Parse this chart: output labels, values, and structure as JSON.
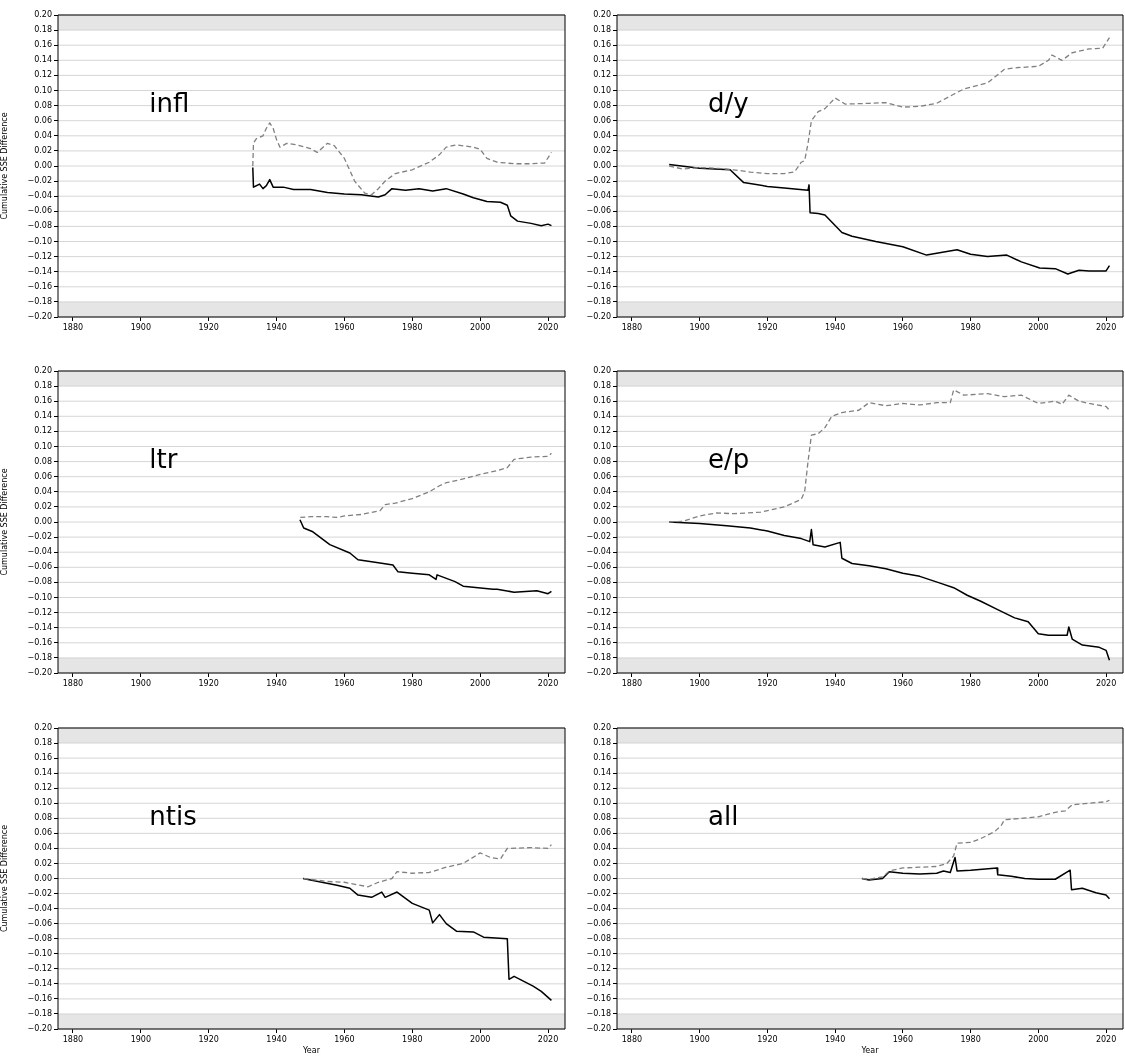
{
  "chart_data": [
    {
      "type": "line",
      "annotations": [
        "infl"
      ],
      "ylabel": "Cumulative SSE Difference",
      "grid": "y",
      "legend": false,
      "xlim": [
        1875.6,
        2025
      ],
      "ylim": [
        -0.2,
        0.2
      ],
      "xticks": [
        1880,
        1900,
        1920,
        1940,
        1960,
        1980,
        2000,
        2020
      ],
      "yticks": [
        {
          "value": -0.2,
          "label": "−0.20"
        },
        {
          "value": -0.18,
          "label": "−0.18"
        },
        {
          "value": -0.16,
          "label": "−0.16"
        },
        {
          "value": -0.14,
          "label": "−0.14"
        },
        {
          "value": -0.12,
          "label": "−0.12"
        },
        {
          "value": -0.1,
          "label": "−0.10"
        },
        {
          "value": -0.08,
          "label": "−0.08"
        },
        {
          "value": -0.06,
          "label": "−0.06"
        },
        {
          "value": -0.04,
          "label": "−0.04"
        },
        {
          "value": -0.02,
          "label": "−0.02"
        },
        {
          "value": 0,
          "label": "0.00"
        },
        {
          "value": 0.02,
          "label": "0.02"
        },
        {
          "value": 0.04,
          "label": "0.04"
        },
        {
          "value": 0.06,
          "label": "0.06"
        },
        {
          "value": 0.08,
          "label": "0.08"
        },
        {
          "value": 0.1,
          "label": "0.10"
        },
        {
          "value": 0.12,
          "label": "0.12"
        },
        {
          "value": 0.14,
          "label": "0.14"
        },
        {
          "value": 0.16,
          "label": "0.16"
        },
        {
          "value": 0.18,
          "label": "0.18"
        },
        {
          "value": 0.2,
          "label": "0.20"
        }
      ],
      "bands": [
        {
          "axis": "y",
          "from": 0.18,
          "to": 0.2,
          "color": "#e5e5e5"
        },
        {
          "axis": "y",
          "from": -0.2,
          "to": -0.18,
          "color": "#e5e5e5"
        }
      ],
      "series": [
        {
          "color": "#808080",
          "line_style": "dashed",
          "x": [
            1933,
            1933.2,
            1934,
            1936,
            1937,
            1938,
            1939,
            1940,
            1941,
            1943,
            1946,
            1950,
            1952,
            1955,
            1957,
            1960,
            1963,
            1966,
            1968,
            1970,
            1972,
            1975,
            1980,
            1985,
            1988,
            1990,
            1993,
            1998,
            2000,
            2002,
            2005,
            2010,
            2015,
            2019,
            2021
          ],
          "values": [
            0.0,
            0.03,
            0.036,
            0.04,
            0.05,
            0.057,
            0.05,
            0.035,
            0.025,
            0.03,
            0.028,
            0.023,
            0.018,
            0.03,
            0.027,
            0.01,
            -0.02,
            -0.036,
            -0.038,
            -0.03,
            -0.02,
            -0.01,
            -0.005,
            0.005,
            0.015,
            0.025,
            0.028,
            0.025,
            0.022,
            0.01,
            0.005,
            0.003,
            0.003,
            0.004,
            0.018
          ]
        },
        {
          "color": "#000000",
          "line_style": "solid",
          "x": [
            1933,
            1933.2,
            1935,
            1936,
            1937,
            1938,
            1939,
            1942,
            1945,
            1950,
            1955,
            1960,
            1965,
            1970,
            1972,
            1974,
            1978,
            1982,
            1986,
            1990,
            1995,
            1998,
            2002,
            2006,
            2008,
            2009,
            2011,
            2015,
            2018,
            2020,
            2021
          ],
          "values": [
            -0.002,
            -0.028,
            -0.024,
            -0.03,
            -0.026,
            -0.018,
            -0.028,
            -0.028,
            -0.031,
            -0.031,
            -0.035,
            -0.037,
            -0.038,
            -0.041,
            -0.038,
            -0.03,
            -0.032,
            -0.03,
            -0.033,
            -0.03,
            -0.037,
            -0.042,
            -0.047,
            -0.048,
            -0.052,
            -0.066,
            -0.073,
            -0.076,
            -0.079,
            -0.077,
            -0.079
          ]
        }
      ]
    },
    {
      "type": "line",
      "annotations": [
        "d/y"
      ],
      "grid": "y",
      "legend": false,
      "xlim": [
        1875.6,
        2025
      ],
      "ylim": [
        -0.2,
        0.2
      ],
      "xticks": [
        1880,
        1900,
        1920,
        1940,
        1960,
        1980,
        2000,
        2020
      ],
      "yticks": [
        {
          "value": -0.2,
          "label": "−0.20"
        },
        {
          "value": -0.18,
          "label": "−0.18"
        },
        {
          "value": -0.16,
          "label": "−0.16"
        },
        {
          "value": -0.14,
          "label": "−0.14"
        },
        {
          "value": -0.12,
          "label": "−0.12"
        },
        {
          "value": -0.1,
          "label": "−0.10"
        },
        {
          "value": -0.08,
          "label": "−0.08"
        },
        {
          "value": -0.06,
          "label": "−0.06"
        },
        {
          "value": -0.04,
          "label": "−0.04"
        },
        {
          "value": -0.02,
          "label": "−0.02"
        },
        {
          "value": 0,
          "label": "0.00"
        },
        {
          "value": 0.02,
          "label": "0.02"
        },
        {
          "value": 0.04,
          "label": "0.04"
        },
        {
          "value": 0.06,
          "label": "0.06"
        },
        {
          "value": 0.08,
          "label": "0.08"
        },
        {
          "value": 0.1,
          "label": "0.10"
        },
        {
          "value": 0.12,
          "label": "0.12"
        },
        {
          "value": 0.14,
          "label": "0.14"
        },
        {
          "value": 0.16,
          "label": "0.16"
        },
        {
          "value": 0.18,
          "label": "0.18"
        },
        {
          "value": 0.2,
          "label": "0.20"
        }
      ],
      "bands": [
        {
          "axis": "y",
          "from": 0.18,
          "to": 0.2,
          "color": "#e5e5e5"
        },
        {
          "axis": "y",
          "from": -0.2,
          "to": -0.18,
          "color": "#e5e5e5"
        }
      ],
      "series": [
        {
          "color": "#808080",
          "line_style": "dashed",
          "x": [
            1891,
            1895,
            1900,
            1905,
            1910,
            1915,
            1920,
            1925,
            1928,
            1930,
            1931,
            1932,
            1933,
            1935,
            1937,
            1940,
            1943,
            1950,
            1955,
            1960,
            1965,
            1970,
            1975,
            1978,
            1985,
            1990,
            1993,
            2000,
            2003,
            2004,
            2007,
            2010,
            2015,
            2019,
            2021
          ],
          "values": [
            0.0,
            -0.004,
            -0.002,
            -0.003,
            -0.005,
            -0.008,
            -0.01,
            -0.01,
            -0.008,
            0.005,
            0.007,
            0.03,
            0.06,
            0.072,
            0.076,
            0.09,
            0.082,
            0.083,
            0.084,
            0.078,
            0.079,
            0.083,
            0.095,
            0.102,
            0.11,
            0.128,
            0.13,
            0.132,
            0.14,
            0.147,
            0.14,
            0.15,
            0.155,
            0.156,
            0.17
          ]
        },
        {
          "color": "#000000",
          "line_style": "solid",
          "x": [
            1891,
            1900,
            1909,
            1913,
            1920,
            1925,
            1932,
            1932.3,
            1932.6,
            1935,
            1937,
            1942,
            1945,
            1952,
            1960,
            1967,
            1976,
            1980,
            1985,
            1990.7,
            1995,
            2000.4,
            2005,
            2008.7,
            2012,
            2015,
            2020,
            2021
          ],
          "values": [
            0.002,
            -0.003,
            -0.005,
            -0.022,
            -0.027,
            -0.029,
            -0.032,
            -0.025,
            -0.062,
            -0.063,
            -0.065,
            -0.088,
            -0.093,
            -0.1,
            -0.107,
            -0.118,
            -0.111,
            -0.117,
            -0.12,
            -0.118,
            -0.127,
            -0.135,
            -0.136,
            -0.143,
            -0.138,
            -0.139,
            -0.139,
            -0.132
          ]
        }
      ]
    },
    {
      "type": "line",
      "annotations": [
        "ltr"
      ],
      "ylabel": "Cumulative SSE Difference",
      "grid": "y",
      "legend": false,
      "xlim": [
        1875.6,
        2025
      ],
      "ylim": [
        -0.2,
        0.2
      ],
      "xticks": [
        1880,
        1900,
        1920,
        1940,
        1960,
        1980,
        2000,
        2020
      ],
      "yticks": [
        {
          "value": -0.2,
          "label": "−0.20"
        },
        {
          "value": -0.18,
          "label": "−0.18"
        },
        {
          "value": -0.16,
          "label": "−0.16"
        },
        {
          "value": -0.14,
          "label": "−0.14"
        },
        {
          "value": -0.12,
          "label": "−0.12"
        },
        {
          "value": -0.1,
          "label": "−0.10"
        },
        {
          "value": -0.08,
          "label": "−0.08"
        },
        {
          "value": -0.06,
          "label": "−0.06"
        },
        {
          "value": -0.04,
          "label": "−0.04"
        },
        {
          "value": -0.02,
          "label": "−0.02"
        },
        {
          "value": 0,
          "label": "0.00"
        },
        {
          "value": 0.02,
          "label": "0.02"
        },
        {
          "value": 0.04,
          "label": "0.04"
        },
        {
          "value": 0.06,
          "label": "0.06"
        },
        {
          "value": 0.08,
          "label": "0.08"
        },
        {
          "value": 0.1,
          "label": "0.10"
        },
        {
          "value": 0.12,
          "label": "0.12"
        },
        {
          "value": 0.14,
          "label": "0.14"
        },
        {
          "value": 0.16,
          "label": "0.16"
        },
        {
          "value": 0.18,
          "label": "0.18"
        },
        {
          "value": 0.2,
          "label": "0.20"
        }
      ],
      "bands": [
        {
          "axis": "y",
          "from": 0.18,
          "to": 0.2,
          "color": "#e5e5e5"
        },
        {
          "axis": "y",
          "from": -0.2,
          "to": -0.18,
          "color": "#e5e5e5"
        }
      ],
      "series": [
        {
          "color": "#808080",
          "line_style": "dashed",
          "x": [
            1947,
            1950,
            1955,
            1958,
            1960,
            1965,
            1970.5,
            1972,
            1975,
            1980,
            1985,
            1988,
            1990,
            1995,
            2000,
            2005,
            2008,
            2010,
            2015,
            2020,
            2021
          ],
          "values": [
            0.006,
            0.007,
            0.007,
            0.006,
            0.008,
            0.01,
            0.015,
            0.023,
            0.025,
            0.031,
            0.04,
            0.048,
            0.052,
            0.057,
            0.063,
            0.068,
            0.072,
            0.083,
            0.086,
            0.087,
            0.091
          ]
        },
        {
          "color": "#000000",
          "line_style": "solid",
          "x": [
            1946.9,
            1948,
            1950.7,
            1955.7,
            1961.6,
            1964,
            1970,
            1974.3,
            1975.8,
            1980,
            1985,
            1987,
            1987.3,
            1992.6,
            1995,
            2003.8,
            2005,
            2010,
            2016.7,
            2020,
            2021
          ],
          "values": [
            0.003,
            -0.008,
            -0.013,
            -0.03,
            -0.041,
            -0.05,
            -0.054,
            -0.057,
            -0.066,
            -0.068,
            -0.07,
            -0.076,
            -0.07,
            -0.079,
            -0.085,
            -0.089,
            -0.089,
            -0.093,
            -0.091,
            -0.095,
            -0.092
          ]
        }
      ]
    },
    {
      "type": "line",
      "annotations": [
        "e/p"
      ],
      "grid": "y",
      "legend": false,
      "xlim": [
        1875.6,
        2025
      ],
      "ylim": [
        -0.2,
        0.2
      ],
      "xticks": [
        1880,
        1900,
        1920,
        1940,
        1960,
        1980,
        2000,
        2020
      ],
      "yticks": [
        {
          "value": -0.2,
          "label": "−0.20"
        },
        {
          "value": -0.18,
          "label": "−0.18"
        },
        {
          "value": -0.16,
          "label": "−0.16"
        },
        {
          "value": -0.14,
          "label": "−0.14"
        },
        {
          "value": -0.12,
          "label": "−0.12"
        },
        {
          "value": -0.1,
          "label": "−0.10"
        },
        {
          "value": -0.08,
          "label": "−0.08"
        },
        {
          "value": -0.06,
          "label": "−0.06"
        },
        {
          "value": -0.04,
          "label": "−0.04"
        },
        {
          "value": -0.02,
          "label": "−0.02"
        },
        {
          "value": 0,
          "label": "0.00"
        },
        {
          "value": 0.02,
          "label": "0.02"
        },
        {
          "value": 0.04,
          "label": "0.04"
        },
        {
          "value": 0.06,
          "label": "0.06"
        },
        {
          "value": 0.08,
          "label": "0.08"
        },
        {
          "value": 0.1,
          "label": "0.10"
        },
        {
          "value": 0.12,
          "label": "0.12"
        },
        {
          "value": 0.14,
          "label": "0.14"
        },
        {
          "value": 0.16,
          "label": "0.16"
        },
        {
          "value": 0.18,
          "label": "0.18"
        },
        {
          "value": 0.2,
          "label": "0.20"
        }
      ],
      "bands": [
        {
          "axis": "y",
          "from": 0.18,
          "to": 0.2,
          "color": "#e5e5e5"
        },
        {
          "axis": "y",
          "from": -0.2,
          "to": -0.18,
          "color": "#e5e5e5"
        }
      ],
      "series": [
        {
          "color": "#808080",
          "line_style": "dashed",
          "x": [
            1891,
            1895,
            1900,
            1905,
            1910,
            1918,
            1925,
            1930,
            1931,
            1932,
            1933,
            1935,
            1937,
            1939,
            1942,
            1947,
            1950,
            1955,
            1960,
            1965,
            1970,
            1974,
            1975,
            1978,
            1985,
            1990,
            1995,
            2000,
            2005,
            2007,
            2009,
            2012,
            2015,
            2020,
            2021
          ],
          "values": [
            0,
            0.001,
            0.008,
            0.012,
            0.011,
            0.013,
            0.02,
            0.03,
            0.04,
            0.08,
            0.115,
            0.117,
            0.125,
            0.14,
            0.145,
            0.148,
            0.158,
            0.154,
            0.157,
            0.155,
            0.158,
            0.158,
            0.175,
            0.168,
            0.17,
            0.166,
            0.168,
            0.157,
            0.16,
            0.156,
            0.168,
            0.16,
            0.157,
            0.153,
            0.148
          ]
        },
        {
          "color": "#000000",
          "line_style": "solid",
          "x": [
            1891,
            1900,
            1908,
            1915,
            1920,
            1925,
            1930,
            1932.5,
            1933,
            1933.5,
            1937,
            1941.5,
            1942,
            1945,
            1950,
            1955,
            1960,
            1965,
            1971,
            1975,
            1979,
            1983,
            1988,
            1993,
            1997,
            2000,
            2003,
            2008.5,
            2009,
            2010,
            2013,
            2018,
            2020,
            2021
          ],
          "values": [
            0,
            -0.002,
            -0.005,
            -0.008,
            -0.012,
            -0.018,
            -0.022,
            -0.026,
            -0.01,
            -0.03,
            -0.033,
            -0.027,
            -0.048,
            -0.055,
            -0.058,
            -0.062,
            -0.068,
            -0.072,
            -0.081,
            -0.087,
            -0.097,
            -0.105,
            -0.116,
            -0.127,
            -0.132,
            -0.148,
            -0.15,
            -0.15,
            -0.139,
            -0.155,
            -0.163,
            -0.166,
            -0.17,
            -0.183
          ]
        }
      ]
    },
    {
      "type": "line",
      "annotations": [
        "ntis"
      ],
      "ylabel": "Cumulative SSE Difference",
      "xlabel": "Year",
      "grid": "y",
      "legend": false,
      "xlim": [
        1875.6,
        2025
      ],
      "ylim": [
        -0.2,
        0.2
      ],
      "xticks": [
        1880,
        1900,
        1920,
        1940,
        1960,
        1980,
        2000,
        2020
      ],
      "yticks": [
        {
          "value": -0.2,
          "label": "−0.20"
        },
        {
          "value": -0.18,
          "label": "−0.18"
        },
        {
          "value": -0.16,
          "label": "−0.16"
        },
        {
          "value": -0.14,
          "label": "−0.14"
        },
        {
          "value": -0.12,
          "label": "−0.12"
        },
        {
          "value": -0.1,
          "label": "−0.10"
        },
        {
          "value": -0.08,
          "label": "−0.08"
        },
        {
          "value": -0.06,
          "label": "−0.06"
        },
        {
          "value": -0.04,
          "label": "−0.04"
        },
        {
          "value": -0.02,
          "label": "−0.02"
        },
        {
          "value": 0,
          "label": "0.00"
        },
        {
          "value": 0.02,
          "label": "0.02"
        },
        {
          "value": 0.04,
          "label": "0.04"
        },
        {
          "value": 0.06,
          "label": "0.06"
        },
        {
          "value": 0.08,
          "label": "0.08"
        },
        {
          "value": 0.1,
          "label": "0.10"
        },
        {
          "value": 0.12,
          "label": "0.12"
        },
        {
          "value": 0.14,
          "label": "0.14"
        },
        {
          "value": 0.16,
          "label": "0.16"
        },
        {
          "value": 0.18,
          "label": "0.18"
        },
        {
          "value": 0.2,
          "label": "0.20"
        }
      ],
      "bands": [
        {
          "axis": "y",
          "from": 0.18,
          "to": 0.2,
          "color": "#e5e5e5"
        },
        {
          "axis": "y",
          "from": -0.2,
          "to": -0.18,
          "color": "#e5e5e5"
        }
      ],
      "series": [
        {
          "color": "#808080",
          "line_style": "dashed",
          "x": [
            1948,
            1955,
            1960,
            1967,
            1970,
            1974,
            1975.5,
            1980,
            1985,
            1990,
            1995,
            2000,
            2003,
            2006,
            2008,
            2015,
            2020,
            2021
          ],
          "values": [
            0,
            -0.004,
            -0.005,
            -0.011,
            -0.005,
            0,
            0.009,
            0.007,
            0.008,
            0.015,
            0.02,
            0.034,
            0.028,
            0.026,
            0.04,
            0.041,
            0.04,
            0.045
          ]
        },
        {
          "color": "#000000",
          "line_style": "solid",
          "x": [
            1947.8,
            1950,
            1957.8,
            1961.6,
            1964,
            1968,
            1971,
            1972,
            1975.5,
            1980,
            1985,
            1986,
            1988,
            1990,
            1993,
            1998,
            2001,
            2008,
            2008.5,
            2010,
            2015.6,
            2018,
            2021
          ],
          "values": [
            0,
            -0.002,
            -0.009,
            -0.013,
            -0.022,
            -0.025,
            -0.018,
            -0.025,
            -0.018,
            -0.033,
            -0.042,
            -0.059,
            -0.048,
            -0.06,
            -0.07,
            -0.071,
            -0.078,
            -0.08,
            -0.134,
            -0.13,
            -0.143,
            -0.15,
            -0.162
          ]
        }
      ]
    },
    {
      "type": "line",
      "annotations": [
        "all"
      ],
      "xlabel": "Year",
      "grid": "y",
      "legend": false,
      "xlim": [
        1875.6,
        2025
      ],
      "ylim": [
        -0.2,
        0.2
      ],
      "xticks": [
        1880,
        1900,
        1920,
        1940,
        1960,
        1980,
        2000,
        2020
      ],
      "yticks": [
        {
          "value": -0.2,
          "label": "−0.20"
        },
        {
          "value": -0.18,
          "label": "−0.18"
        },
        {
          "value": -0.16,
          "label": "−0.16"
        },
        {
          "value": -0.14,
          "label": "−0.14"
        },
        {
          "value": -0.12,
          "label": "−0.12"
        },
        {
          "value": -0.1,
          "label": "−0.10"
        },
        {
          "value": -0.08,
          "label": "−0.08"
        },
        {
          "value": -0.06,
          "label": "−0.06"
        },
        {
          "value": -0.04,
          "label": "−0.04"
        },
        {
          "value": -0.02,
          "label": "−0.02"
        },
        {
          "value": 0,
          "label": "0.00"
        },
        {
          "value": 0.02,
          "label": "0.02"
        },
        {
          "value": 0.04,
          "label": "0.04"
        },
        {
          "value": 0.06,
          "label": "0.06"
        },
        {
          "value": 0.08,
          "label": "0.08"
        },
        {
          "value": 0.1,
          "label": "0.10"
        },
        {
          "value": 0.12,
          "label": "0.12"
        },
        {
          "value": 0.14,
          "label": "0.14"
        },
        {
          "value": 0.16,
          "label": "0.16"
        },
        {
          "value": 0.18,
          "label": "0.18"
        },
        {
          "value": 0.2,
          "label": "0.20"
        }
      ],
      "bands": [
        {
          "axis": "y",
          "from": 0.18,
          "to": 0.2,
          "color": "#e5e5e5"
        },
        {
          "axis": "y",
          "from": -0.2,
          "to": -0.18,
          "color": "#e5e5e5"
        }
      ],
      "series": [
        {
          "color": "#808080",
          "line_style": "dashed",
          "x": [
            1948,
            1950,
            1954,
            1956,
            1960,
            1965,
            1970,
            1973,
            1975,
            1976,
            1980,
            1983,
            1987,
            1989,
            1990,
            1995,
            2000,
            2005,
            2008,
            2010,
            2015,
            2020,
            2021
          ],
          "values": [
            0,
            -0.001,
            0.002,
            0.01,
            0.014,
            0.015,
            0.016,
            0.02,
            0.03,
            0.047,
            0.048,
            0.053,
            0.062,
            0.07,
            0.078,
            0.08,
            0.082,
            0.088,
            0.09,
            0.098,
            0.1,
            0.102,
            0.104
          ]
        },
        {
          "color": "#000000",
          "line_style": "solid",
          "x": [
            1947.9,
            1950,
            1954,
            1956,
            1960,
            1965,
            1970,
            1972,
            1974,
            1975.4,
            1976,
            1980,
            1987.8,
            1988,
            1992,
            1996,
            2000,
            2005,
            2009.4,
            2009.8,
            2013,
            2017,
            2020,
            2021
          ],
          "values": [
            0,
            -0.002,
            0,
            0.009,
            0.007,
            0.006,
            0.007,
            0.01,
            0.008,
            0.028,
            0.01,
            0.011,
            0.014,
            0.005,
            0.003,
            0,
            -0.001,
            -0.001,
            0.011,
            -0.015,
            -0.013,
            -0.019,
            -0.022,
            -0.027
          ]
        }
      ]
    }
  ]
}
